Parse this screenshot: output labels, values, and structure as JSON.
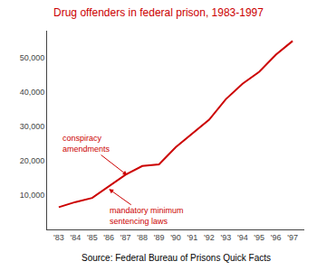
{
  "chart_data": {
    "type": "line",
    "title": "Drug offenders in federal prison, 1983-1997",
    "source": "Source: Federal Bureau of Prisons Quick Facts",
    "x": [
      1983,
      1984,
      1985,
      1986,
      1987,
      1988,
      1989,
      1990,
      1991,
      1992,
      1993,
      1994,
      1995,
      1996,
      1997
    ],
    "values": [
      6500,
      8000,
      9200,
      12500,
      16000,
      18500,
      19000,
      24000,
      28000,
      32000,
      38000,
      42500,
      46000,
      51000,
      55000
    ],
    "color": "#cc0000",
    "xlim": [
      1982.3,
      1997.7
    ],
    "xticks": [
      {
        "value": 1983,
        "label": "'83"
      },
      {
        "value": 1984,
        "label": "'84"
      },
      {
        "value": 1985,
        "label": "'85"
      },
      {
        "value": 1986,
        "label": "'86"
      },
      {
        "value": 1987,
        "label": "'87"
      },
      {
        "value": 1988,
        "label": "'88"
      },
      {
        "value": 1989,
        "label": "'89"
      },
      {
        "value": 1990,
        "label": "'90"
      },
      {
        "value": 1991,
        "label": "'91"
      },
      {
        "value": 1992,
        "label": "'92"
      },
      {
        "value": 1993,
        "label": "'93"
      },
      {
        "value": 1994,
        "label": "'94"
      },
      {
        "value": 1995,
        "label": "'95"
      },
      {
        "value": 1996,
        "label": "'96"
      },
      {
        "value": 1997,
        "label": "'97"
      }
    ],
    "ylim": [
      0,
      58000
    ],
    "yticks": [
      {
        "value": 10000,
        "label": "10,000"
      },
      {
        "value": 20000,
        "label": "20,000"
      },
      {
        "value": 30000,
        "label": "30,000"
      },
      {
        "value": 40000,
        "label": "40,000"
      },
      {
        "value": 50000,
        "label": "50,000"
      }
    ],
    "annotations": [
      {
        "text": "conspiracy\namendments",
        "x": 1987.1,
        "y": 15800
      },
      {
        "text": "mandatory minimum\nsentencing laws",
        "x": 1986.0,
        "y": 11800
      }
    ],
    "grid": false
  }
}
